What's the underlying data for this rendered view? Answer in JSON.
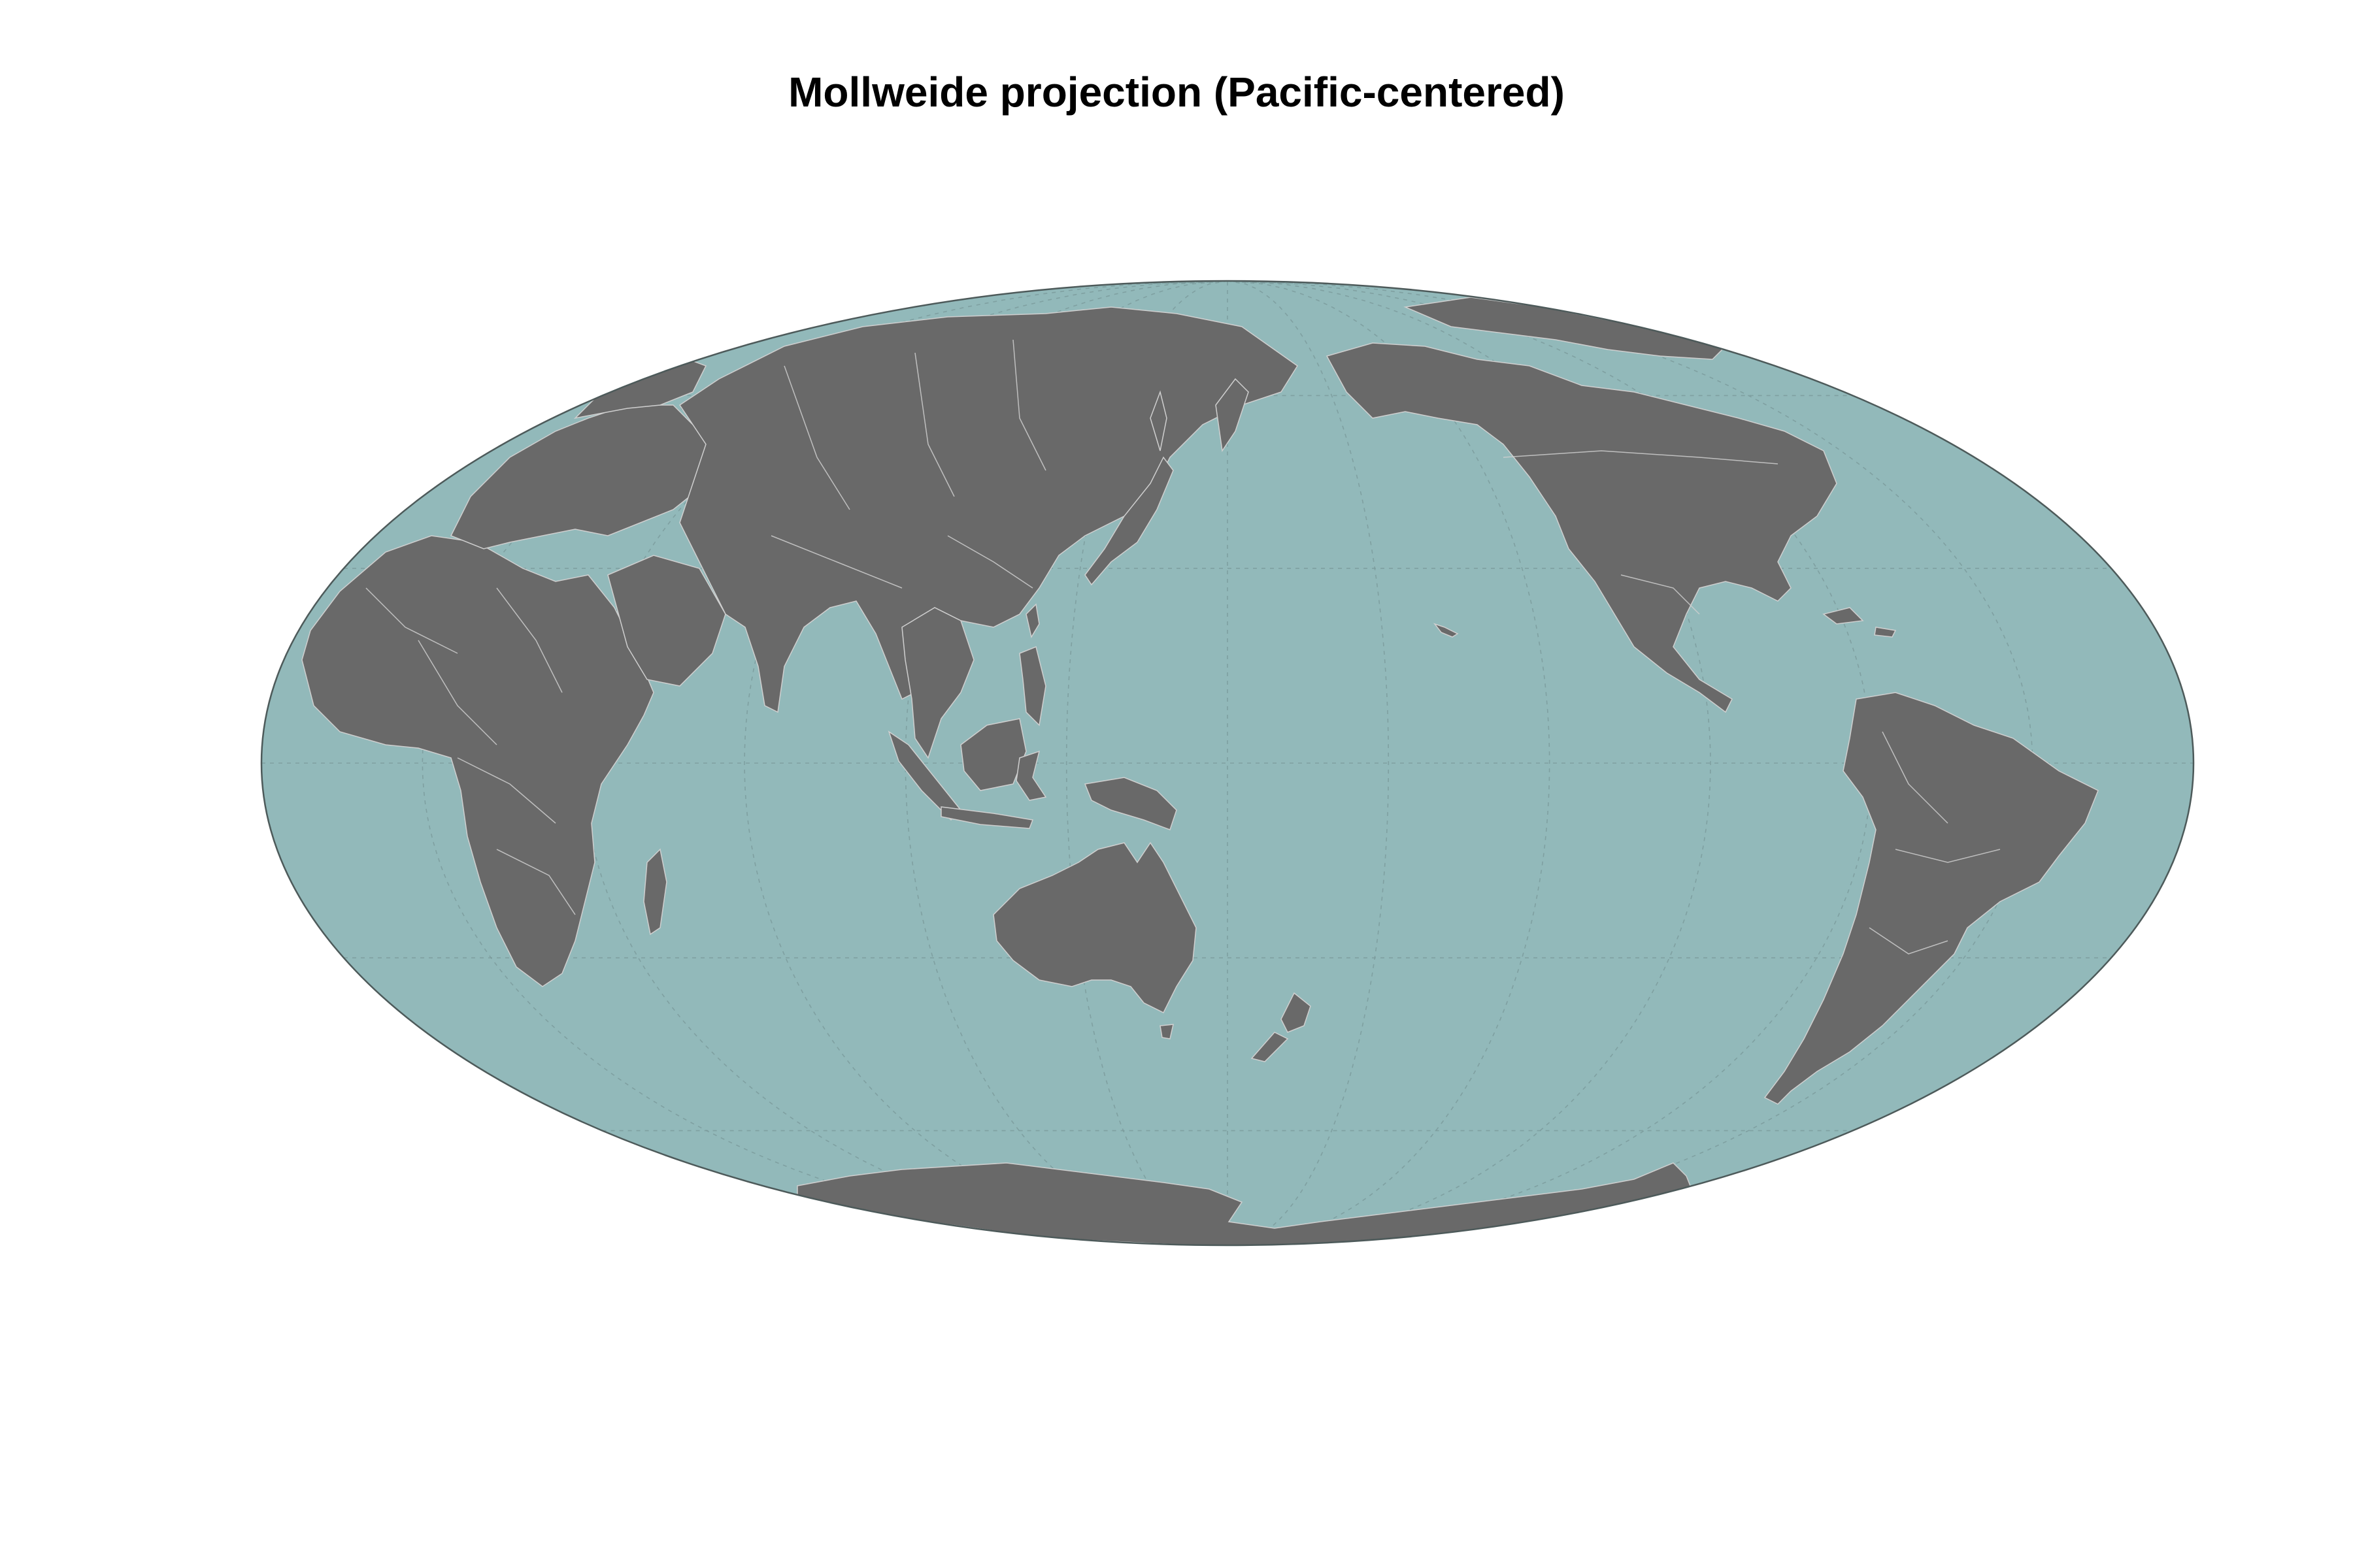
{
  "title": "Mollweide projection (Pacific-centered)",
  "projection": "Mollweide",
  "central_meridian": 150,
  "colors": {
    "ocean": "#92b9ba",
    "land": "#696969",
    "borders": "#cfcfcf",
    "graticule": "#7a9a9b",
    "outline": "#4d5a5a",
    "title": "#000000"
  },
  "graticule": {
    "parallels_deg": [
      -60,
      -30,
      0,
      30,
      60
    ],
    "meridian_step_deg": 30,
    "style": "dashed"
  },
  "landmasses": [
    "Africa",
    "Europe",
    "Asia",
    "Australia",
    "North America",
    "South America",
    "Antarctica",
    "Greenland",
    "Madagascar",
    "Japan",
    "New Zealand",
    "New Guinea",
    "Borneo",
    "Sumatra",
    "Philippines",
    "Hawaii"
  ]
}
